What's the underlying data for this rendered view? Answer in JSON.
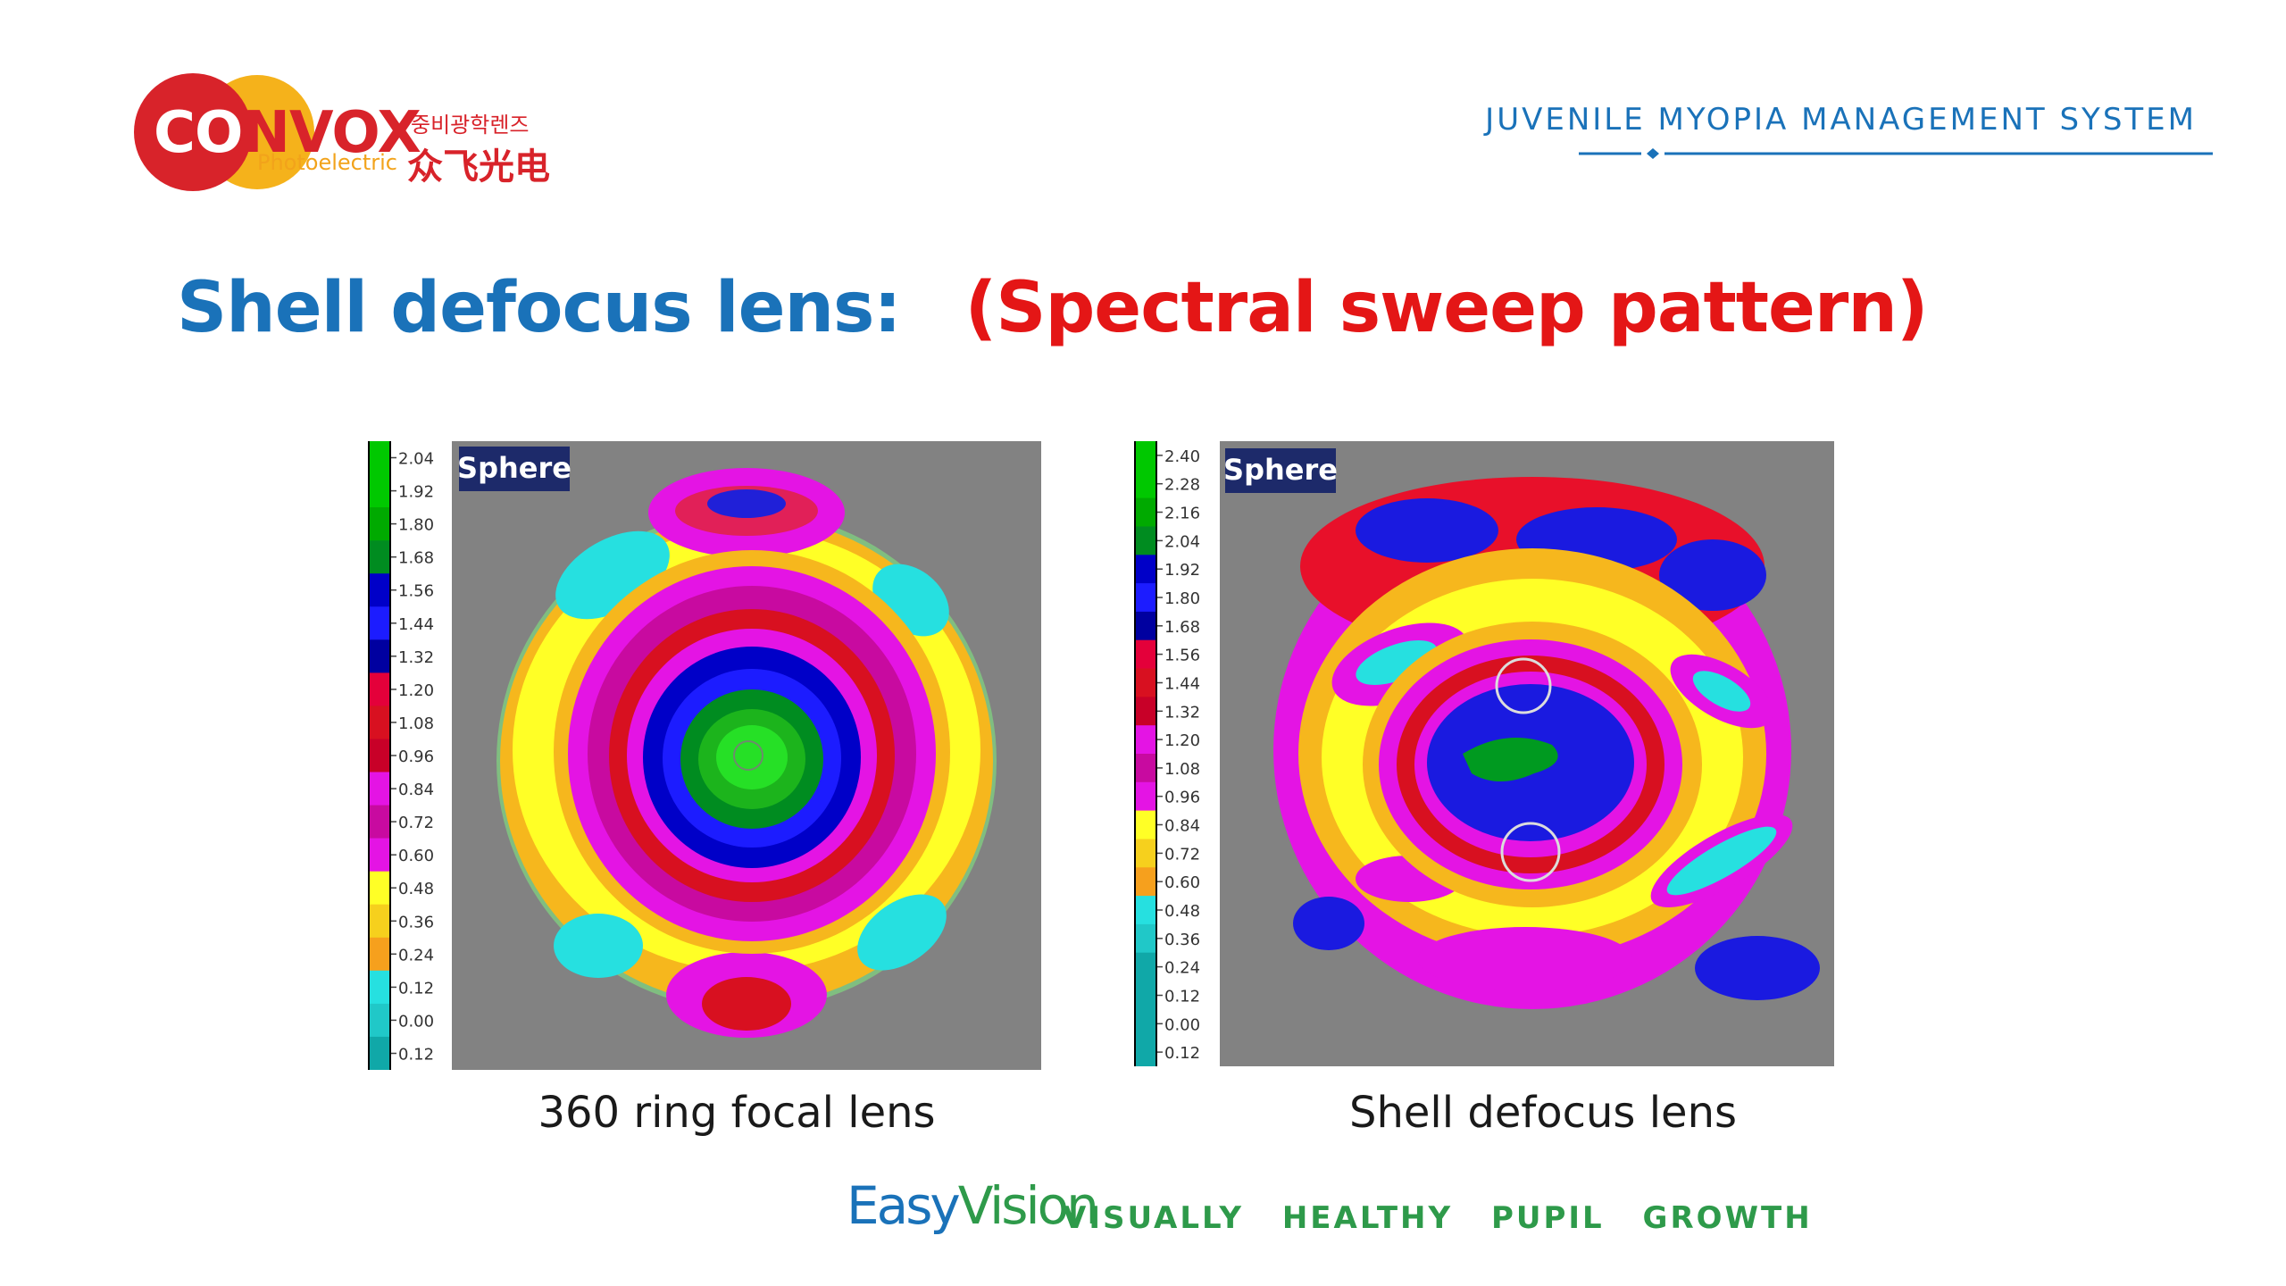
{
  "logo": {
    "wordmark_head": "CO",
    "wordmark_tail": "NVOX",
    "subtitle": "Photoelectric",
    "korean": "중비광학렌즈",
    "chinese": "众飞光电"
  },
  "header": {
    "system_title": "JUVENILE MYOPIA MANAGEMENT SYSTEM"
  },
  "heading": {
    "main": "Shell defocus lens:",
    "highlight": "(Spectral sweep pattern)"
  },
  "panels": [
    {
      "badge": "Sphere",
      "caption": "360 ring focal lens",
      "scale": [
        "2.04",
        "1.92",
        "1.80",
        "1.68",
        "1.56",
        "1.44",
        "1.32",
        "1.20",
        "1.08",
        "0.96",
        "0.84",
        "0.72",
        "0.60",
        "0.48",
        "0.36",
        "0.24",
        "0.12",
        "0.00",
        "0.12"
      ]
    },
    {
      "badge": "Sphere",
      "caption": "Shell defocus lens",
      "scale": [
        "2.40",
        "2.28",
        "2.16",
        "2.04",
        "1.92",
        "1.80",
        "1.68",
        "1.56",
        "1.44",
        "1.32",
        "1.20",
        "1.08",
        "0.96",
        "0.84",
        "0.72",
        "0.60",
        "0.48",
        "0.36",
        "0.24",
        "0.12",
        "0.00",
        "0.12"
      ]
    }
  ],
  "footer": {
    "brand_easy": "Easy",
    "brand_vision": "Vision",
    "slogan": "VISUALLY HEALTHY PUPIL GROWTH"
  },
  "colors": {
    "brand_blue": "#1a72b9",
    "highlight_red": "#e41616",
    "slogan_green": "#2e9a4a",
    "map_background": "#828282"
  }
}
